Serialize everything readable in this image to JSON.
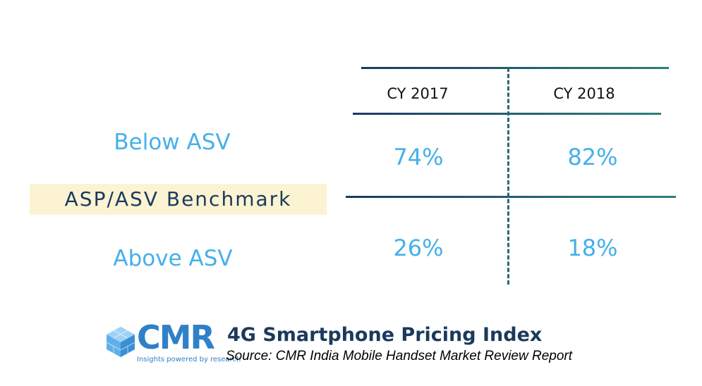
{
  "chart_data": {
    "type": "table",
    "columns": [
      "CY 2017",
      "CY 2018"
    ],
    "rows": [
      {
        "label": "Below ASV",
        "values": [
          "74%",
          "82%"
        ]
      },
      {
        "label": "Above ASV",
        "values": [
          "26%",
          "18%"
        ]
      }
    ],
    "divider_label": "ASP/ASV Benchmark"
  },
  "footer": {
    "logo_text": "CMR",
    "logo_tagline": "Insights powered by research",
    "title": "4G Smartphone Pricing Index",
    "source": "Source:  CMR India Mobile Handset Market Review Report"
  },
  "colors": {
    "value": "#45b0ea",
    "navy": "#1b3a5c",
    "teal": "#2f7f7c",
    "benchmark_bg": "#fbf3d2"
  }
}
